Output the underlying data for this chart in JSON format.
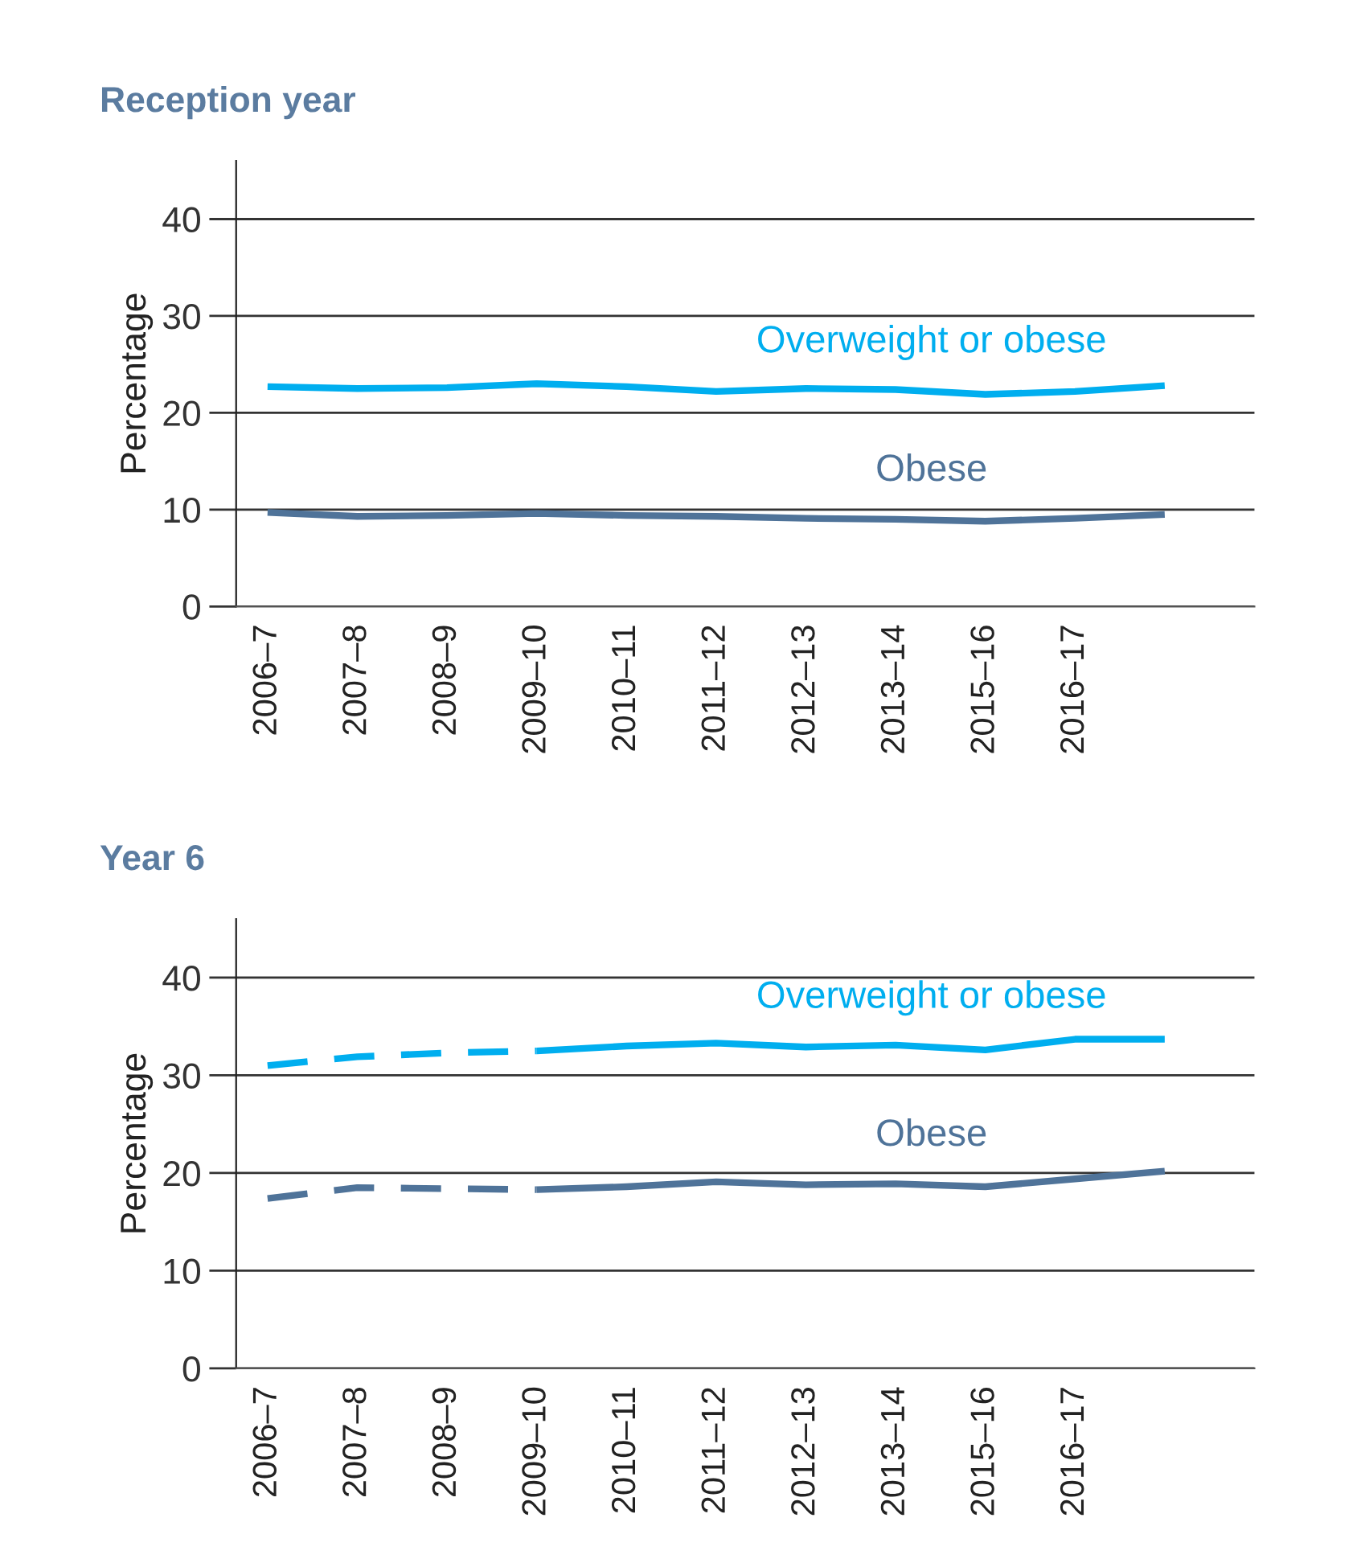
{
  "chart_data": [
    {
      "type": "line",
      "title": "Reception year",
      "ylabel": "Percentage",
      "ylim": [
        0,
        46
      ],
      "yticks": [
        0,
        10,
        20,
        30,
        40
      ],
      "grid": "y",
      "line_style": "solid",
      "marker": "none",
      "categories": [
        "2006–7",
        "2007–8",
        "2008–9",
        "2009–10",
        "2010–11",
        "2011–12",
        "2012–13",
        "2013–14",
        "2015–16",
        "2016–17",
        null
      ],
      "series": [
        {
          "name": "Overweight or obese",
          "color": "#00aeef",
          "values": [
            22.7,
            22.5,
            22.6,
            23.0,
            22.7,
            22.2,
            22.5,
            22.4,
            21.9,
            22.2,
            22.8
          ]
        },
        {
          "name": "Obese",
          "color": "#4f7399",
          "values": [
            9.7,
            9.3,
            9.4,
            9.6,
            9.4,
            9.3,
            9.1,
            9.0,
            8.8,
            9.1,
            9.5
          ]
        }
      ]
    },
    {
      "type": "line",
      "title": "Year 6",
      "ylabel": "Percentage",
      "ylim": [
        0,
        46
      ],
      "yticks": [
        0,
        10,
        20,
        30,
        40
      ],
      "grid": "y",
      "line_style": "solid",
      "marker": "none",
      "categories": [
        "2006–7",
        "2007–8",
        "2008–9",
        "2009–10",
        "2010–11",
        "2011–12",
        "2012–13",
        "2013–14",
        "2015–16",
        "2016–17",
        null
      ],
      "series": [
        {
          "color": "#00aeef",
          "line_style": "dashed",
          "values": [
            31.0,
            31.9,
            32.3,
            32.5,
            null,
            null,
            null,
            null,
            null,
            null,
            null
          ]
        },
        {
          "name": "Overweight or obese",
          "color": "#00aeef",
          "values": [
            null,
            null,
            null,
            32.5,
            33.0,
            33.3,
            32.9,
            33.1,
            32.6,
            33.7,
            33.7
          ]
        },
        {
          "color": "#4f7399",
          "line_style": "dashed",
          "values": [
            17.4,
            18.5,
            18.4,
            18.3,
            null,
            null,
            null,
            null,
            null,
            null,
            null
          ]
        },
        {
          "name": "Obese",
          "color": "#4f7399",
          "values": [
            null,
            null,
            null,
            18.3,
            18.6,
            19.1,
            18.8,
            18.9,
            18.6,
            19.4,
            20.2
          ]
        }
      ]
    }
  ]
}
